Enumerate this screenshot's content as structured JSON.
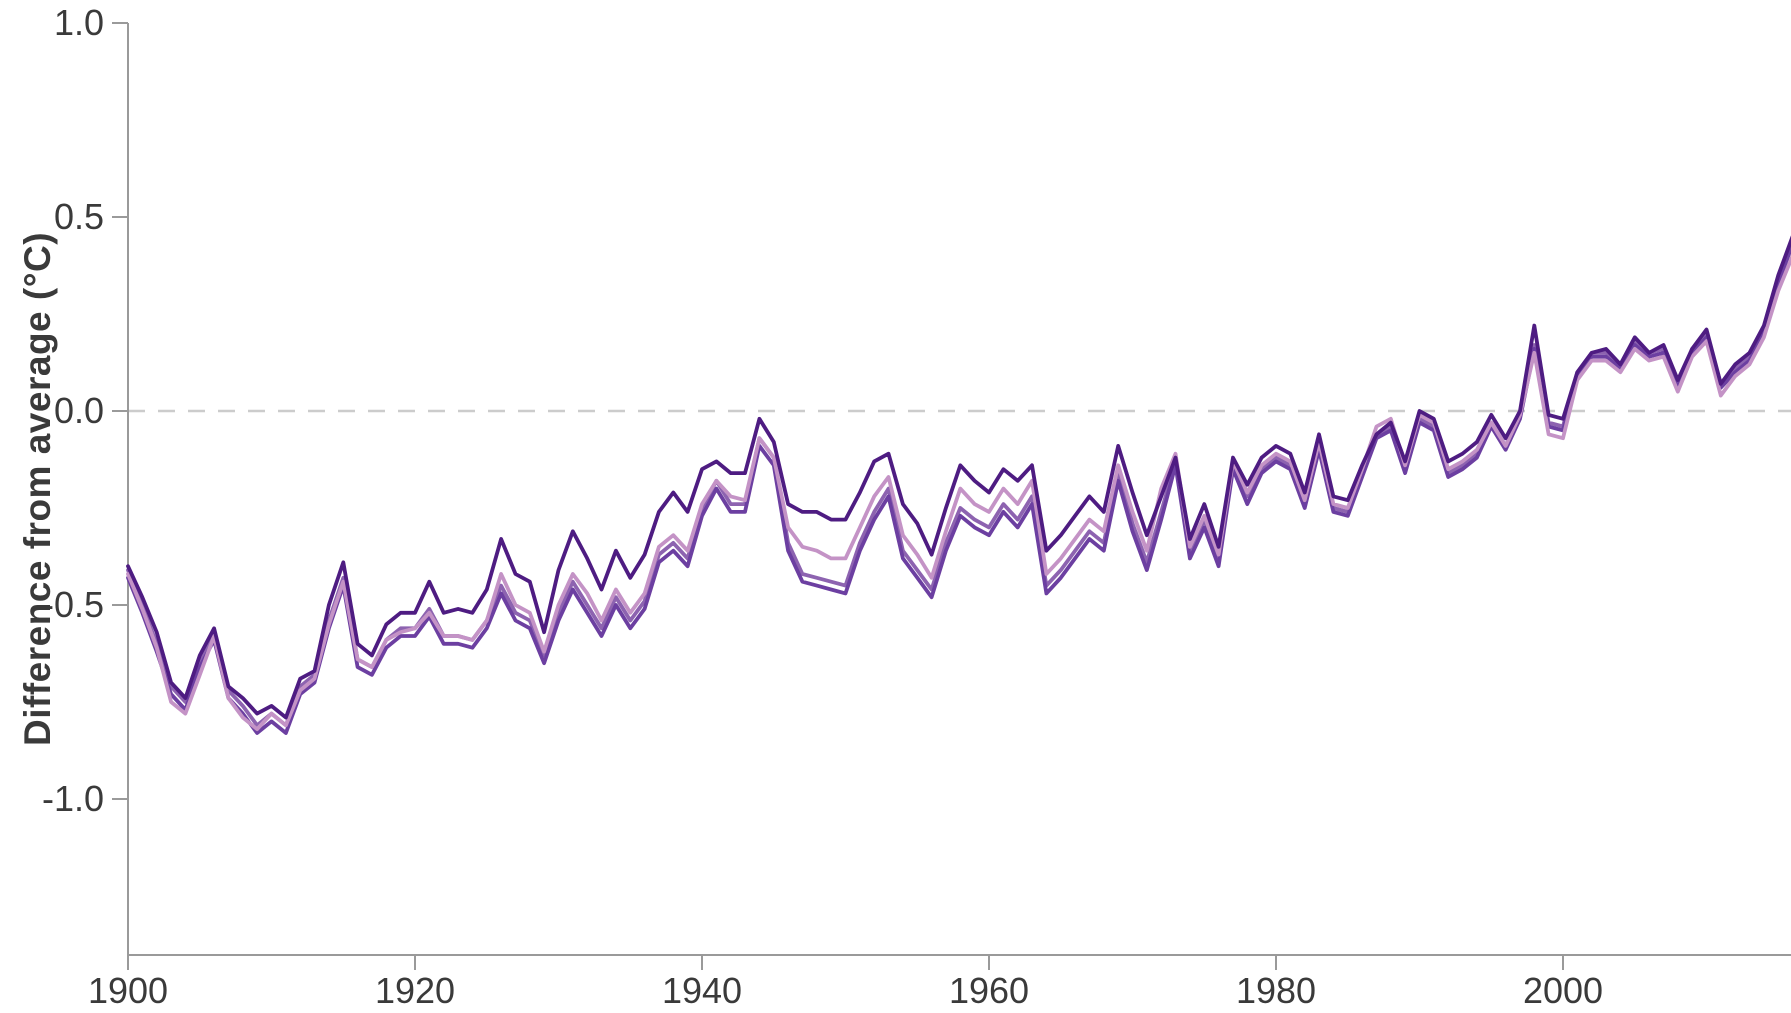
{
  "chart_data": {
    "type": "line",
    "title": "",
    "xlabel": "",
    "ylabel": "Difference from average (°C)",
    "grid": false,
    "legend": "none",
    "zero_reference_line": 0.0,
    "x_start_year": 1900,
    "x_end_year": 2016,
    "xlim": [
      1900,
      2016
    ],
    "ylim": [
      -1.4,
      1.0
    ],
    "x_ticks": [
      {
        "value": 1900,
        "label": "1900"
      },
      {
        "value": 1920,
        "label": "1920"
      },
      {
        "value": 1940,
        "label": "1940"
      },
      {
        "value": 1960,
        "label": "1960"
      },
      {
        "value": 1980,
        "label": "1980"
      },
      {
        "value": 2000,
        "label": "2000"
      }
    ],
    "y_ticks": [
      {
        "value": 1.0,
        "label": "1.0"
      },
      {
        "value": 0.5,
        "label": "0.5"
      },
      {
        "value": 0.0,
        "label": "0.0"
      },
      {
        "value": -0.5,
        "label": "-0.5"
      },
      {
        "value": -1.0,
        "label": "-1.0"
      }
    ],
    "colors": {
      "axis": "#9a9a9a",
      "tick_text": "#3a3a3a",
      "zero_dash": "#cccccc",
      "background": "#ffffff"
    },
    "series": [
      {
        "name": "series-medium-purple-b",
        "color": "#8d63b0",
        "line_width": 3.8,
        "values": [
          -0.41,
          -0.5,
          -0.6,
          -0.71,
          -0.75,
          -0.64,
          -0.57,
          -0.72,
          -0.76,
          -0.81,
          -0.78,
          -0.81,
          -0.71,
          -0.68,
          -0.54,
          -0.43,
          -0.64,
          -0.66,
          -0.59,
          -0.56,
          -0.56,
          -0.51,
          -0.58,
          -0.58,
          -0.59,
          -0.54,
          -0.45,
          -0.52,
          -0.54,
          -0.63,
          -0.52,
          -0.44,
          -0.5,
          -0.56,
          -0.48,
          -0.54,
          -0.49,
          -0.37,
          -0.34,
          -0.38,
          -0.25,
          -0.18,
          -0.24,
          -0.24,
          -0.07,
          -0.12,
          -0.34,
          -0.42,
          -0.43,
          -0.44,
          -0.45,
          -0.34,
          -0.26,
          -0.2,
          -0.36,
          -0.41,
          -0.46,
          -0.34,
          -0.25,
          -0.28,
          -0.3,
          -0.24,
          -0.28,
          -0.22,
          -0.45,
          -0.41,
          -0.36,
          -0.31,
          -0.34,
          -0.16,
          -0.29,
          -0.39,
          -0.26,
          -0.13,
          -0.36,
          -0.28,
          -0.38,
          -0.14,
          -0.22,
          -0.15,
          -0.12,
          -0.14,
          -0.24,
          -0.09,
          -0.25,
          -0.26,
          -0.16,
          -0.06,
          -0.04,
          -0.15,
          -0.02,
          -0.04,
          -0.16,
          -0.14,
          -0.11,
          -0.03,
          -0.09,
          -0.01,
          0.17,
          -0.03,
          -0.04,
          0.1,
          0.15,
          0.15,
          0.12,
          0.18,
          0.15,
          0.16,
          0.07,
          0.16,
          0.2,
          0.07,
          0.11,
          0.14,
          0.21,
          0.34,
          0.44
        ]
      },
      {
        "name": "series-medium-purple-a",
        "color": "#6c3fa1",
        "line_width": 3.8,
        "values": [
          -0.43,
          -0.52,
          -0.62,
          -0.73,
          -0.77,
          -0.66,
          -0.59,
          -0.74,
          -0.78,
          -0.83,
          -0.8,
          -0.83,
          -0.73,
          -0.7,
          -0.56,
          -0.45,
          -0.66,
          -0.68,
          -0.61,
          -0.58,
          -0.58,
          -0.53,
          -0.6,
          -0.6,
          -0.61,
          -0.56,
          -0.47,
          -0.54,
          -0.56,
          -0.65,
          -0.54,
          -0.46,
          -0.52,
          -0.58,
          -0.5,
          -0.56,
          -0.51,
          -0.39,
          -0.36,
          -0.4,
          -0.27,
          -0.2,
          -0.26,
          -0.26,
          -0.09,
          -0.14,
          -0.36,
          -0.44,
          -0.45,
          -0.46,
          -0.47,
          -0.36,
          -0.28,
          -0.22,
          -0.38,
          -0.43,
          -0.48,
          -0.36,
          -0.27,
          -0.3,
          -0.32,
          -0.26,
          -0.3,
          -0.24,
          -0.47,
          -0.43,
          -0.38,
          -0.33,
          -0.36,
          -0.18,
          -0.31,
          -0.41,
          -0.28,
          -0.14,
          -0.38,
          -0.3,
          -0.4,
          -0.15,
          -0.24,
          -0.16,
          -0.13,
          -0.15,
          -0.25,
          -0.1,
          -0.26,
          -0.27,
          -0.17,
          -0.07,
          -0.05,
          -0.16,
          -0.03,
          -0.05,
          -0.17,
          -0.15,
          -0.12,
          -0.04,
          -0.1,
          -0.02,
          0.16,
          -0.04,
          -0.05,
          0.09,
          0.14,
          0.14,
          0.11,
          0.17,
          0.14,
          0.15,
          0.06,
          0.15,
          0.19,
          0.06,
          0.1,
          0.13,
          0.2,
          0.33,
          0.43
        ]
      },
      {
        "name": "series-light-orchid",
        "color": "#c493c6",
        "line_width": 3.8,
        "values": [
          -0.42,
          -0.51,
          -0.61,
          -0.75,
          -0.78,
          -0.68,
          -0.58,
          -0.74,
          -0.79,
          -0.82,
          -0.78,
          -0.81,
          -0.72,
          -0.69,
          -0.55,
          -0.44,
          -0.64,
          -0.66,
          -0.59,
          -0.57,
          -0.56,
          -0.52,
          -0.58,
          -0.58,
          -0.59,
          -0.54,
          -0.42,
          -0.5,
          -0.52,
          -0.62,
          -0.5,
          -0.42,
          -0.47,
          -0.54,
          -0.46,
          -0.52,
          -0.47,
          -0.35,
          -0.32,
          -0.36,
          -0.24,
          -0.18,
          -0.22,
          -0.23,
          -0.07,
          -0.12,
          -0.3,
          -0.35,
          -0.36,
          -0.38,
          -0.38,
          -0.3,
          -0.22,
          -0.17,
          -0.32,
          -0.37,
          -0.43,
          -0.31,
          -0.2,
          -0.24,
          -0.26,
          -0.2,
          -0.24,
          -0.18,
          -0.42,
          -0.38,
          -0.33,
          -0.28,
          -0.31,
          -0.14,
          -0.26,
          -0.36,
          -0.2,
          -0.11,
          -0.35,
          -0.27,
          -0.37,
          -0.13,
          -0.21,
          -0.14,
          -0.11,
          -0.13,
          -0.23,
          -0.08,
          -0.24,
          -0.25,
          -0.15,
          -0.04,
          -0.02,
          -0.14,
          -0.01,
          -0.03,
          -0.15,
          -0.13,
          -0.1,
          -0.03,
          -0.09,
          -0.01,
          0.15,
          -0.06,
          -0.07,
          0.08,
          0.13,
          0.13,
          0.1,
          0.16,
          0.13,
          0.14,
          0.05,
          0.14,
          0.18,
          0.04,
          0.09,
          0.12,
          0.19,
          0.31,
          0.4
        ]
      },
      {
        "name": "series-dark-violet",
        "color": "#4e1c82",
        "line_width": 3.8,
        "values": [
          -0.4,
          -0.48,
          -0.57,
          -0.7,
          -0.74,
          -0.63,
          -0.56,
          -0.71,
          -0.74,
          -0.78,
          -0.76,
          -0.79,
          -0.69,
          -0.67,
          -0.5,
          -0.39,
          -0.6,
          -0.63,
          -0.55,
          -0.52,
          -0.52,
          -0.44,
          -0.52,
          -0.51,
          -0.52,
          -0.46,
          -0.33,
          -0.42,
          -0.44,
          -0.57,
          -0.41,
          -0.31,
          -0.38,
          -0.46,
          -0.36,
          -0.43,
          -0.37,
          -0.26,
          -0.21,
          -0.26,
          -0.15,
          -0.13,
          -0.16,
          -0.16,
          -0.02,
          -0.08,
          -0.24,
          -0.26,
          -0.26,
          -0.28,
          -0.28,
          -0.21,
          -0.13,
          -0.11,
          -0.24,
          -0.29,
          -0.37,
          -0.25,
          -0.14,
          -0.18,
          -0.21,
          -0.15,
          -0.18,
          -0.14,
          -0.36,
          -0.32,
          -0.27,
          -0.22,
          -0.26,
          -0.09,
          -0.21,
          -0.32,
          -0.22,
          -0.12,
          -0.33,
          -0.24,
          -0.35,
          -0.12,
          -0.19,
          -0.12,
          -0.09,
          -0.11,
          -0.21,
          -0.06,
          -0.22,
          -0.23,
          -0.14,
          -0.06,
          -0.03,
          -0.13,
          0.0,
          -0.02,
          -0.13,
          -0.11,
          -0.08,
          -0.01,
          -0.07,
          0.0,
          0.22,
          -0.01,
          -0.02,
          0.1,
          0.15,
          0.16,
          0.12,
          0.19,
          0.15,
          0.17,
          0.08,
          0.16,
          0.21,
          0.07,
          0.12,
          0.15,
          0.22,
          0.35,
          0.45
        ]
      }
    ]
  }
}
